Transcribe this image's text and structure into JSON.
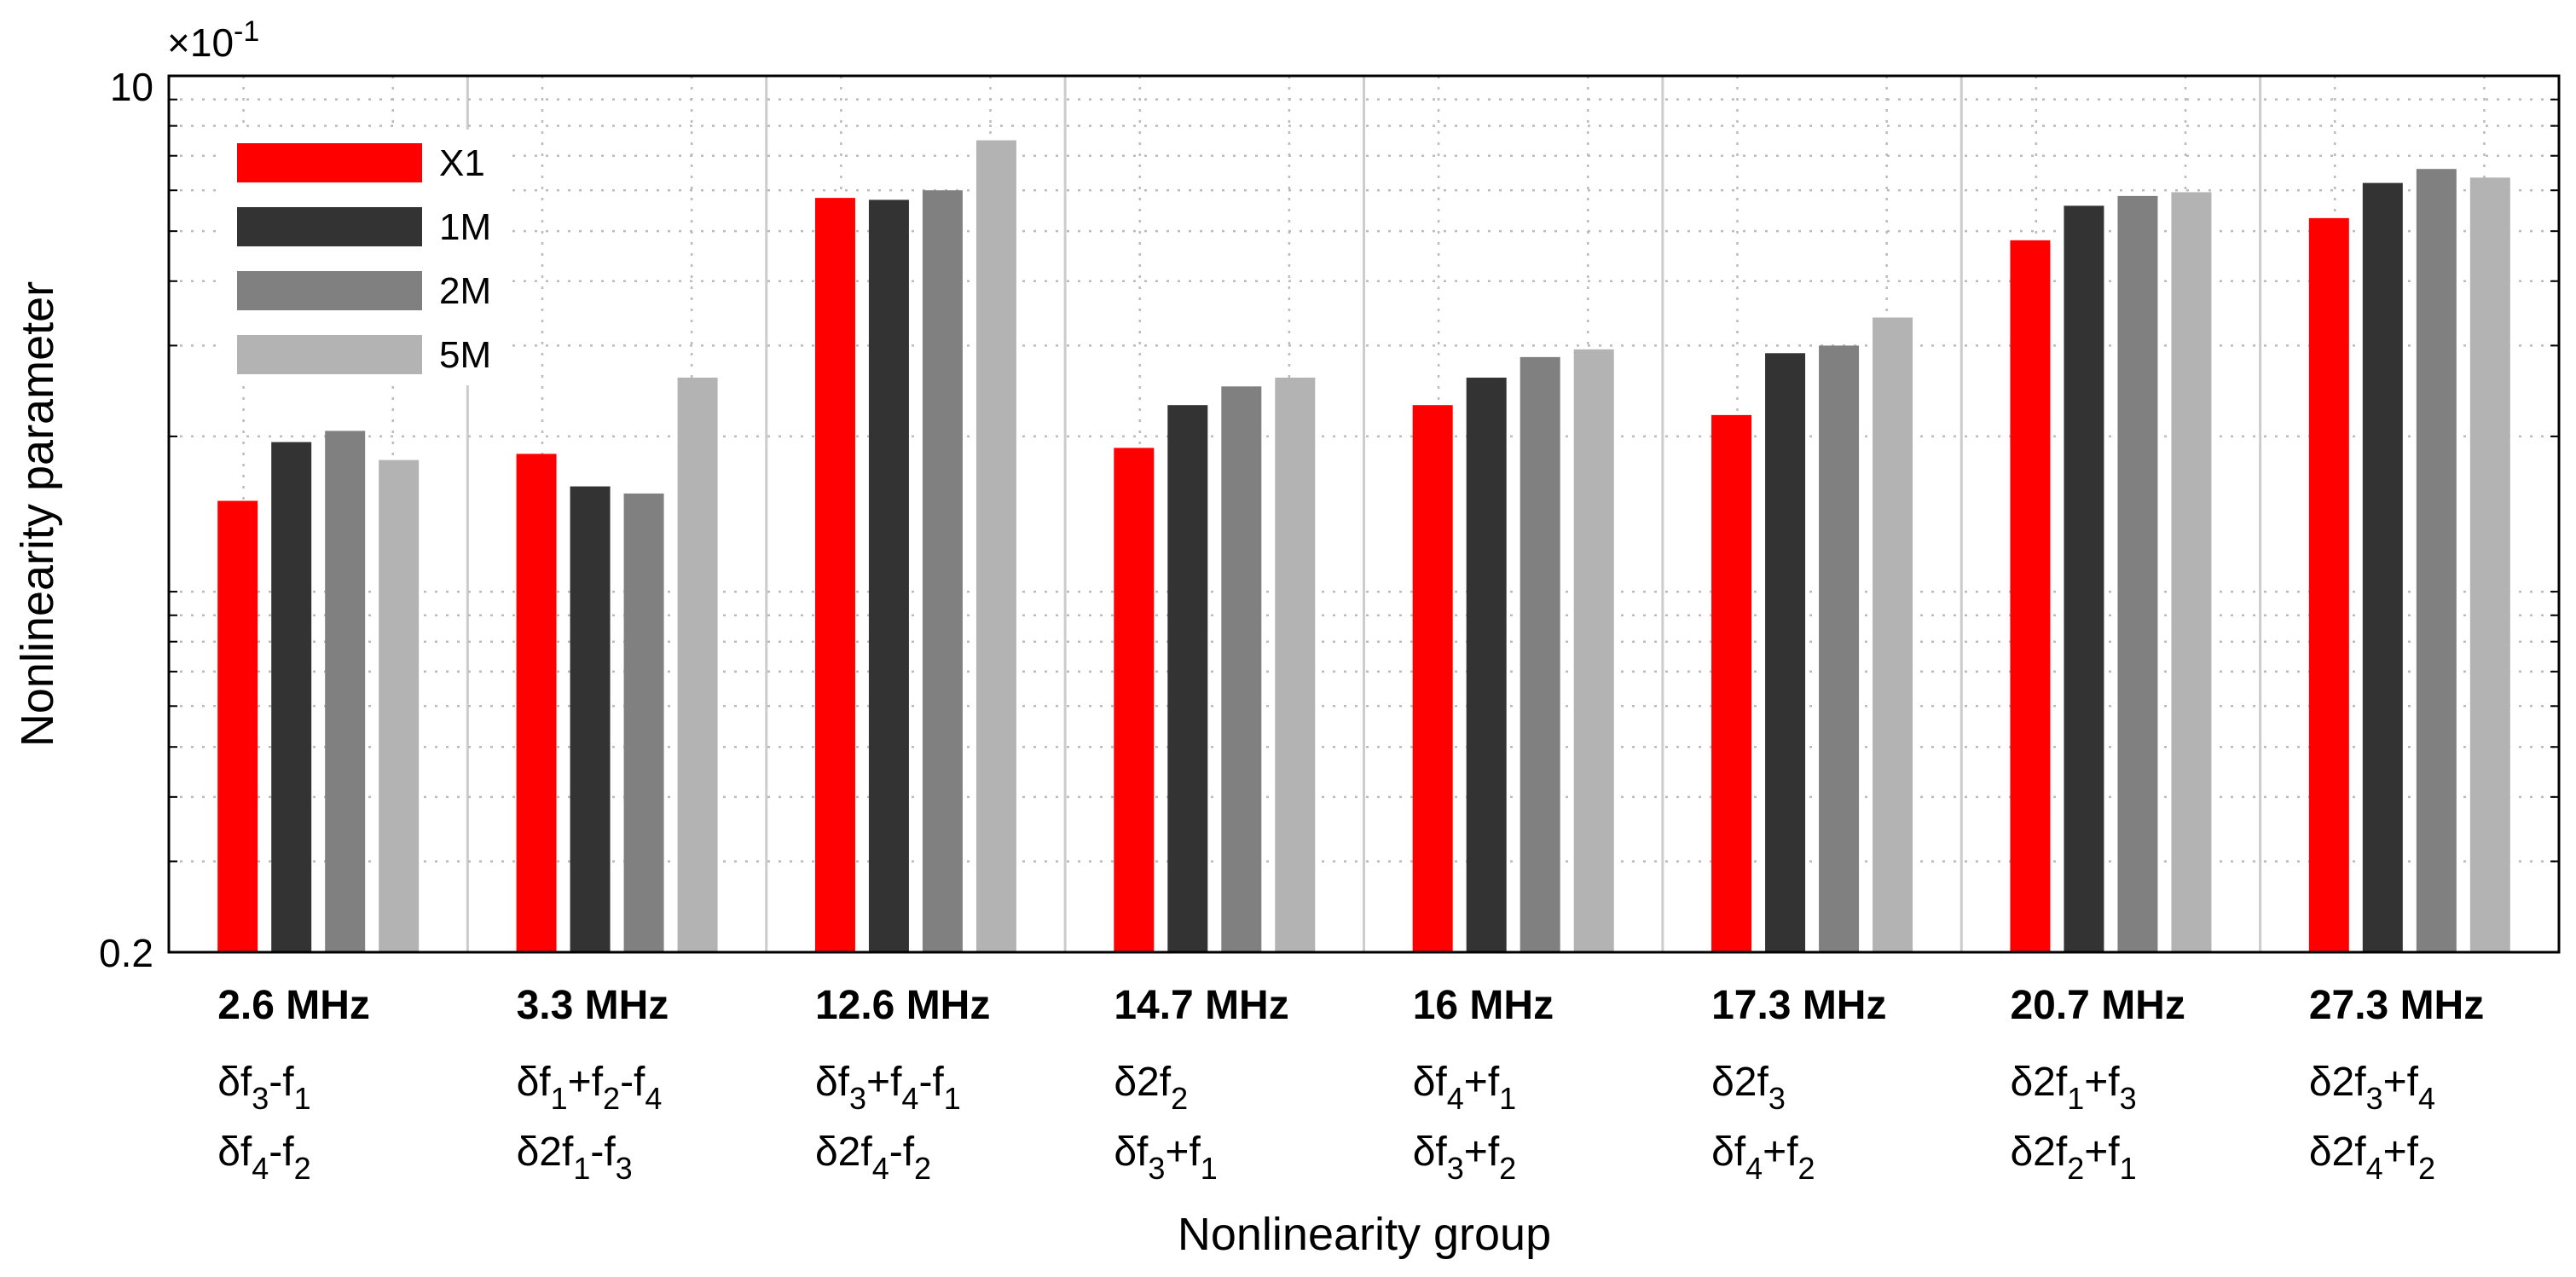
{
  "chart_data": {
    "type": "bar",
    "title": "",
    "xlabel": "Nonlinearity group",
    "ylabel": "Nonlinearity parameter",
    "yscale": "log",
    "ylim": [
      0.2,
      10
    ],
    "y_exponent_label": "×10",
    "y_exponent_power": "-1",
    "y_ticks": [
      "0.2",
      "10"
    ],
    "grid": true,
    "legend_position": "top-left",
    "categories": [
      "2.6 MHz",
      "3.3 MHz",
      "12.6 MHz",
      "14.7 MHz",
      "16 MHz",
      "17.3 MHz",
      "20.7 MHz",
      "27.3 MHz"
    ],
    "combinations": [
      [
        [
          {
            "t": "δf",
            "s": "n"
          },
          {
            "t": "3",
            "s": "sub"
          },
          {
            "t": "-f",
            "s": "n"
          },
          {
            "t": "1",
            "s": "sub"
          }
        ],
        [
          {
            "t": "δf",
            "s": "n"
          },
          {
            "t": "4",
            "s": "sub"
          },
          {
            "t": "-f",
            "s": "n"
          },
          {
            "t": "2",
            "s": "sub"
          }
        ]
      ],
      [
        [
          {
            "t": "δf",
            "s": "n"
          },
          {
            "t": "1",
            "s": "sub"
          },
          {
            "t": "+f",
            "s": "n"
          },
          {
            "t": "2",
            "s": "sub"
          },
          {
            "t": "-f",
            "s": "n"
          },
          {
            "t": "4",
            "s": "sub"
          }
        ],
        [
          {
            "t": "δ2f",
            "s": "n"
          },
          {
            "t": "1",
            "s": "sub"
          },
          {
            "t": "-f",
            "s": "n"
          },
          {
            "t": "3",
            "s": "sub"
          }
        ]
      ],
      [
        [
          {
            "t": "δf",
            "s": "n"
          },
          {
            "t": "3",
            "s": "sub"
          },
          {
            "t": "+f",
            "s": "n"
          },
          {
            "t": "4",
            "s": "sub"
          },
          {
            "t": "-f",
            "s": "n"
          },
          {
            "t": "1",
            "s": "sub"
          }
        ],
        [
          {
            "t": "δ2f",
            "s": "n"
          },
          {
            "t": "4",
            "s": "sub"
          },
          {
            "t": "-f",
            "s": "n"
          },
          {
            "t": "2",
            "s": "sub"
          }
        ]
      ],
      [
        [
          {
            "t": "δ2f",
            "s": "n"
          },
          {
            "t": "2",
            "s": "sub"
          }
        ],
        [
          {
            "t": "δf",
            "s": "n"
          },
          {
            "t": "3",
            "s": "sub"
          },
          {
            "t": "+f",
            "s": "n"
          },
          {
            "t": "1",
            "s": "sub"
          }
        ]
      ],
      [
        [
          {
            "t": "δf",
            "s": "n"
          },
          {
            "t": "4",
            "s": "sub"
          },
          {
            "t": "+f",
            "s": "n"
          },
          {
            "t": "1",
            "s": "sub"
          }
        ],
        [
          {
            "t": "δf",
            "s": "n"
          },
          {
            "t": "3",
            "s": "sub"
          },
          {
            "t": "+f",
            "s": "n"
          },
          {
            "t": "2",
            "s": "sub"
          }
        ]
      ],
      [
        [
          {
            "t": "δ2f",
            "s": "n"
          },
          {
            "t": "3",
            "s": "sub"
          }
        ],
        [
          {
            "t": "δf",
            "s": "n"
          },
          {
            "t": "4",
            "s": "sub"
          },
          {
            "t": "+f",
            "s": "n"
          },
          {
            "t": "2",
            "s": "sub"
          }
        ]
      ],
      [
        [
          {
            "t": "δ2f",
            "s": "n"
          },
          {
            "t": "1",
            "s": "sub"
          },
          {
            "t": "+f",
            "s": "n"
          },
          {
            "t": "3",
            "s": "sub"
          }
        ],
        [
          {
            "t": "δ2f",
            "s": "n"
          },
          {
            "t": "2",
            "s": "sub"
          },
          {
            "t": "+f",
            "s": "n"
          },
          {
            "t": "1",
            "s": "sub"
          }
        ]
      ],
      [
        [
          {
            "t": "δ2f",
            "s": "n"
          },
          {
            "t": "3",
            "s": "sub"
          },
          {
            "t": "+f",
            "s": "n"
          },
          {
            "t": "4",
            "s": "sub"
          }
        ],
        [
          {
            "t": "δ2f",
            "s": "n"
          },
          {
            "t": "4",
            "s": "sub"
          },
          {
            "t": "+f",
            "s": "n"
          },
          {
            "t": "2",
            "s": "sub"
          }
        ]
      ]
    ],
    "series": [
      {
        "name": "X1",
        "color": "#ff0000",
        "values": [
          1.5,
          1.85,
          5.8,
          1.9,
          2.3,
          2.2,
          4.8,
          5.3
        ]
      },
      {
        "name": "1M",
        "color": "#333333",
        "values": [
          1.95,
          1.6,
          5.75,
          2.3,
          2.6,
          2.9,
          5.6,
          6.2
        ]
      },
      {
        "name": "2M",
        "color": "#808080",
        "values": [
          2.05,
          1.55,
          6.0,
          2.5,
          2.85,
          3.0,
          5.85,
          6.6
        ]
      },
      {
        "name": "5M",
        "color": "#b3b3b3",
        "values": [
          1.8,
          2.6,
          7.5,
          2.6,
          2.95,
          3.4,
          5.95,
          6.35
        ]
      }
    ]
  }
}
